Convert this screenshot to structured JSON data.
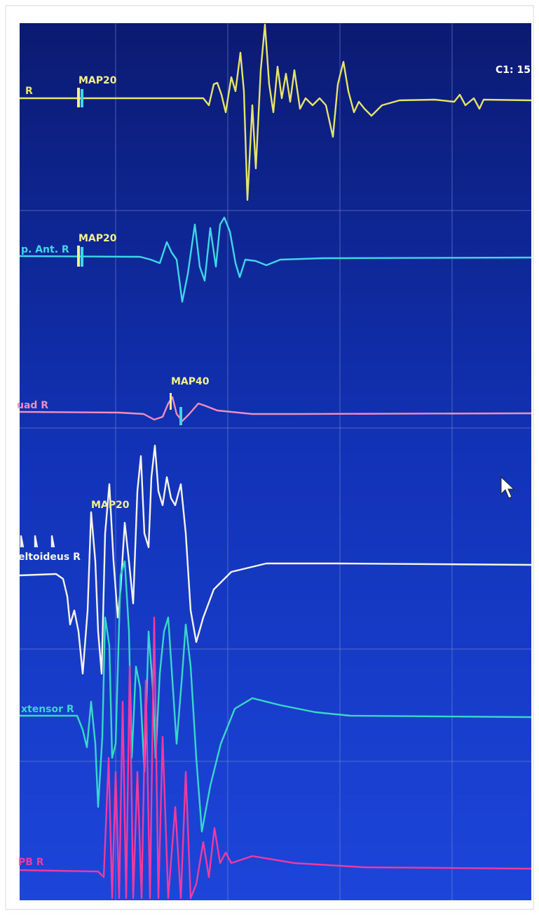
{
  "cursor_readout": "C1: 15",
  "channels": [
    {
      "label": "R",
      "marker": "MAP20"
    },
    {
      "label": "p. Ant. R",
      "marker": "MAP20"
    },
    {
      "label": "uad R",
      "marker": "MAP40"
    },
    {
      "label": "eltoideus R",
      "marker": "MAP20"
    },
    {
      "label": "xtensor R"
    },
    {
      "label": "PB R"
    }
  ]
}
